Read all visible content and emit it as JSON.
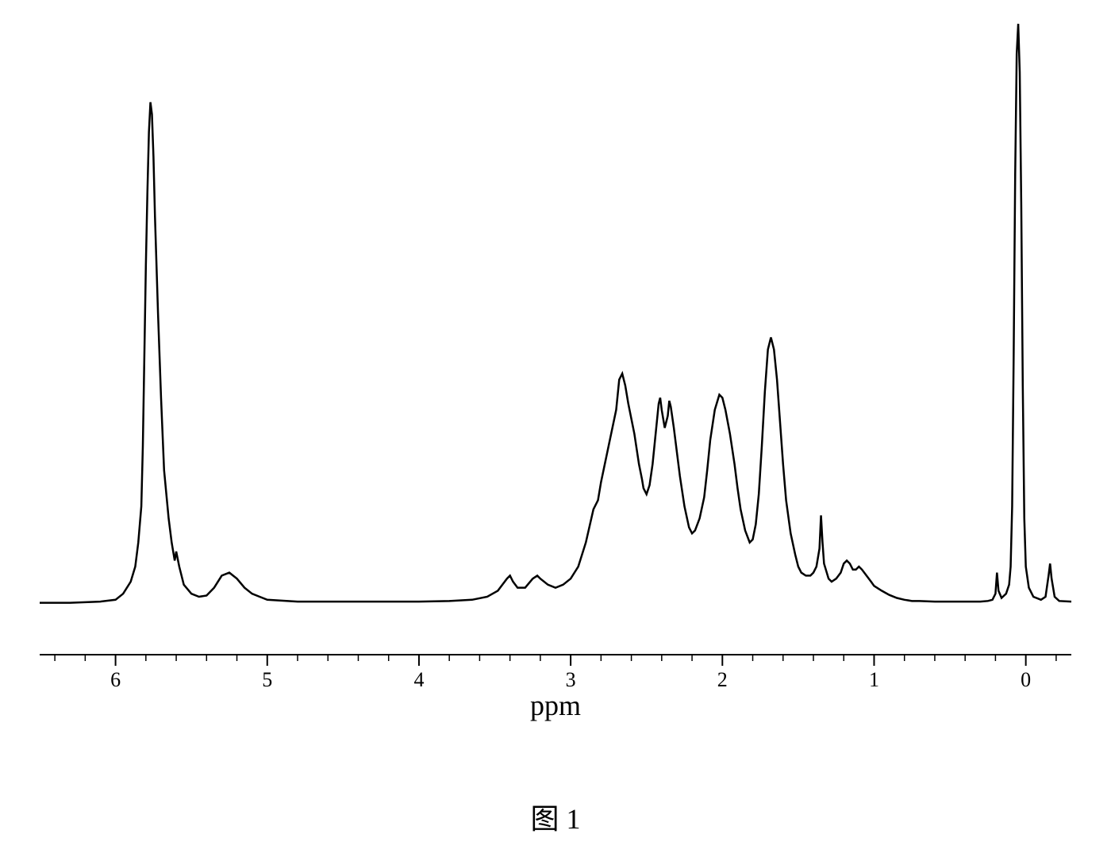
{
  "chart": {
    "type": "line",
    "background_color": "#ffffff",
    "stroke_color": "#000000",
    "stroke_width": 2.5,
    "xlabel": "ppm",
    "caption": "图 1",
    "label_fontsize": 36,
    "caption_fontsize": 36,
    "tick_fontsize": 26,
    "xlim": [
      6.5,
      -0.3
    ],
    "ylim": [
      0,
      100
    ],
    "x_major_ticks": [
      6,
      5,
      4,
      3,
      2,
      1,
      0
    ],
    "x_minor_ticks_per_major": 5,
    "x_axis_direction": "reversed",
    "spectrum_points": [
      [
        6.5,
        4.0
      ],
      [
        6.3,
        4.0
      ],
      [
        6.1,
        4.2
      ],
      [
        6.0,
        4.5
      ],
      [
        5.95,
        5.5
      ],
      [
        5.9,
        7.5
      ],
      [
        5.87,
        10.0
      ],
      [
        5.85,
        14.0
      ],
      [
        5.83,
        20.0
      ],
      [
        5.82,
        30.0
      ],
      [
        5.81,
        45.0
      ],
      [
        5.8,
        60.0
      ],
      [
        5.79,
        72.0
      ],
      [
        5.78,
        82.0
      ],
      [
        5.77,
        87.0
      ],
      [
        5.76,
        85.0
      ],
      [
        5.75,
        78.0
      ],
      [
        5.74,
        68.0
      ],
      [
        5.72,
        52.0
      ],
      [
        5.7,
        38.0
      ],
      [
        5.68,
        26.0
      ],
      [
        5.65,
        18.0
      ],
      [
        5.63,
        14.0
      ],
      [
        5.61,
        11.0
      ],
      [
        5.6,
        12.5
      ],
      [
        5.58,
        10.0
      ],
      [
        5.55,
        7.0
      ],
      [
        5.5,
        5.5
      ],
      [
        5.45,
        5.0
      ],
      [
        5.4,
        5.2
      ],
      [
        5.35,
        6.5
      ],
      [
        5.3,
        8.5
      ],
      [
        5.25,
        9.0
      ],
      [
        5.2,
        8.0
      ],
      [
        5.15,
        6.5
      ],
      [
        5.1,
        5.5
      ],
      [
        5.05,
        5.0
      ],
      [
        5.0,
        4.5
      ],
      [
        4.8,
        4.2
      ],
      [
        4.6,
        4.2
      ],
      [
        4.4,
        4.2
      ],
      [
        4.2,
        4.2
      ],
      [
        4.0,
        4.2
      ],
      [
        3.8,
        4.3
      ],
      [
        3.65,
        4.5
      ],
      [
        3.55,
        5.0
      ],
      [
        3.48,
        6.0
      ],
      [
        3.42,
        8.0
      ],
      [
        3.4,
        8.5
      ],
      [
        3.38,
        7.5
      ],
      [
        3.35,
        6.5
      ],
      [
        3.3,
        6.5
      ],
      [
        3.25,
        8.0
      ],
      [
        3.22,
        8.5
      ],
      [
        3.2,
        8.0
      ],
      [
        3.15,
        7.0
      ],
      [
        3.1,
        6.5
      ],
      [
        3.05,
        7.0
      ],
      [
        3.0,
        8.0
      ],
      [
        2.95,
        10.0
      ],
      [
        2.9,
        14.0
      ],
      [
        2.85,
        19.5
      ],
      [
        2.82,
        21.0
      ],
      [
        2.8,
        24.0
      ],
      [
        2.75,
        30.0
      ],
      [
        2.7,
        36.0
      ],
      [
        2.68,
        41.0
      ],
      [
        2.66,
        42.0
      ],
      [
        2.64,
        40.0
      ],
      [
        2.62,
        37.0
      ],
      [
        2.58,
        32.0
      ],
      [
        2.55,
        27.0
      ],
      [
        2.53,
        24.5
      ],
      [
        2.52,
        23.0
      ],
      [
        2.5,
        22.0
      ],
      [
        2.48,
        23.5
      ],
      [
        2.46,
        27.0
      ],
      [
        2.44,
        32.0
      ],
      [
        2.42,
        37.0
      ],
      [
        2.41,
        38.0
      ],
      [
        2.4,
        36.0
      ],
      [
        2.38,
        33.0
      ],
      [
        2.36,
        35.0
      ],
      [
        2.35,
        37.5
      ],
      [
        2.34,
        36.5
      ],
      [
        2.32,
        33.0
      ],
      [
        2.3,
        29.0
      ],
      [
        2.28,
        25.0
      ],
      [
        2.25,
        20.0
      ],
      [
        2.22,
        16.5
      ],
      [
        2.2,
        15.5
      ],
      [
        2.18,
        16.0
      ],
      [
        2.15,
        18.0
      ],
      [
        2.12,
        21.5
      ],
      [
        2.1,
        26.0
      ],
      [
        2.08,
        31.0
      ],
      [
        2.05,
        36.0
      ],
      [
        2.02,
        38.5
      ],
      [
        2.0,
        38.0
      ],
      [
        1.98,
        36.0
      ],
      [
        1.95,
        32.0
      ],
      [
        1.92,
        27.0
      ],
      [
        1.9,
        23.0
      ],
      [
        1.88,
        19.5
      ],
      [
        1.85,
        16.0
      ],
      [
        1.82,
        14.0
      ],
      [
        1.8,
        14.5
      ],
      [
        1.78,
        17.0
      ],
      [
        1.76,
        22.0
      ],
      [
        1.74,
        30.0
      ],
      [
        1.72,
        39.0
      ],
      [
        1.7,
        46.0
      ],
      [
        1.68,
        48.0
      ],
      [
        1.66,
        46.0
      ],
      [
        1.64,
        41.0
      ],
      [
        1.62,
        34.0
      ],
      [
        1.6,
        27.0
      ],
      [
        1.58,
        21.0
      ],
      [
        1.55,
        15.5
      ],
      [
        1.52,
        12.0
      ],
      [
        1.5,
        10.0
      ],
      [
        1.48,
        9.0
      ],
      [
        1.45,
        8.5
      ],
      [
        1.42,
        8.5
      ],
      [
        1.4,
        9.0
      ],
      [
        1.38,
        10.0
      ],
      [
        1.36,
        13.0
      ],
      [
        1.35,
        18.5
      ],
      [
        1.34,
        14.0
      ],
      [
        1.33,
        10.5
      ],
      [
        1.3,
        8.0
      ],
      [
        1.28,
        7.5
      ],
      [
        1.25,
        8.0
      ],
      [
        1.22,
        9.0
      ],
      [
        1.2,
        10.5
      ],
      [
        1.18,
        11.0
      ],
      [
        1.16,
        10.5
      ],
      [
        1.14,
        9.5
      ],
      [
        1.12,
        9.5
      ],
      [
        1.1,
        10.0
      ],
      [
        1.08,
        9.5
      ],
      [
        1.05,
        8.5
      ],
      [
        1.02,
        7.5
      ],
      [
        1.0,
        6.8
      ],
      [
        0.95,
        6.0
      ],
      [
        0.9,
        5.3
      ],
      [
        0.85,
        4.8
      ],
      [
        0.8,
        4.5
      ],
      [
        0.75,
        4.3
      ],
      [
        0.7,
        4.3
      ],
      [
        0.6,
        4.2
      ],
      [
        0.5,
        4.2
      ],
      [
        0.4,
        4.2
      ],
      [
        0.3,
        4.2
      ],
      [
        0.25,
        4.3
      ],
      [
        0.22,
        4.5
      ],
      [
        0.2,
        5.5
      ],
      [
        0.19,
        9.0
      ],
      [
        0.18,
        6.0
      ],
      [
        0.16,
        4.8
      ],
      [
        0.13,
        5.5
      ],
      [
        0.11,
        7.0
      ],
      [
        0.1,
        10.0
      ],
      [
        0.09,
        20.0
      ],
      [
        0.08,
        45.0
      ],
      [
        0.07,
        75.0
      ],
      [
        0.06,
        95.0
      ],
      [
        0.05,
        100.0
      ],
      [
        0.04,
        92.0
      ],
      [
        0.03,
        70.0
      ],
      [
        0.02,
        40.0
      ],
      [
        0.01,
        18.0
      ],
      [
        0.0,
        10.0
      ],
      [
        -0.02,
        6.5
      ],
      [
        -0.05,
        5.0
      ],
      [
        -0.1,
        4.5
      ],
      [
        -0.13,
        5.0
      ],
      [
        -0.15,
        8.5
      ],
      [
        -0.16,
        10.5
      ],
      [
        -0.17,
        8.0
      ],
      [
        -0.19,
        5.0
      ],
      [
        -0.22,
        4.3
      ],
      [
        -0.3,
        4.2
      ]
    ]
  }
}
